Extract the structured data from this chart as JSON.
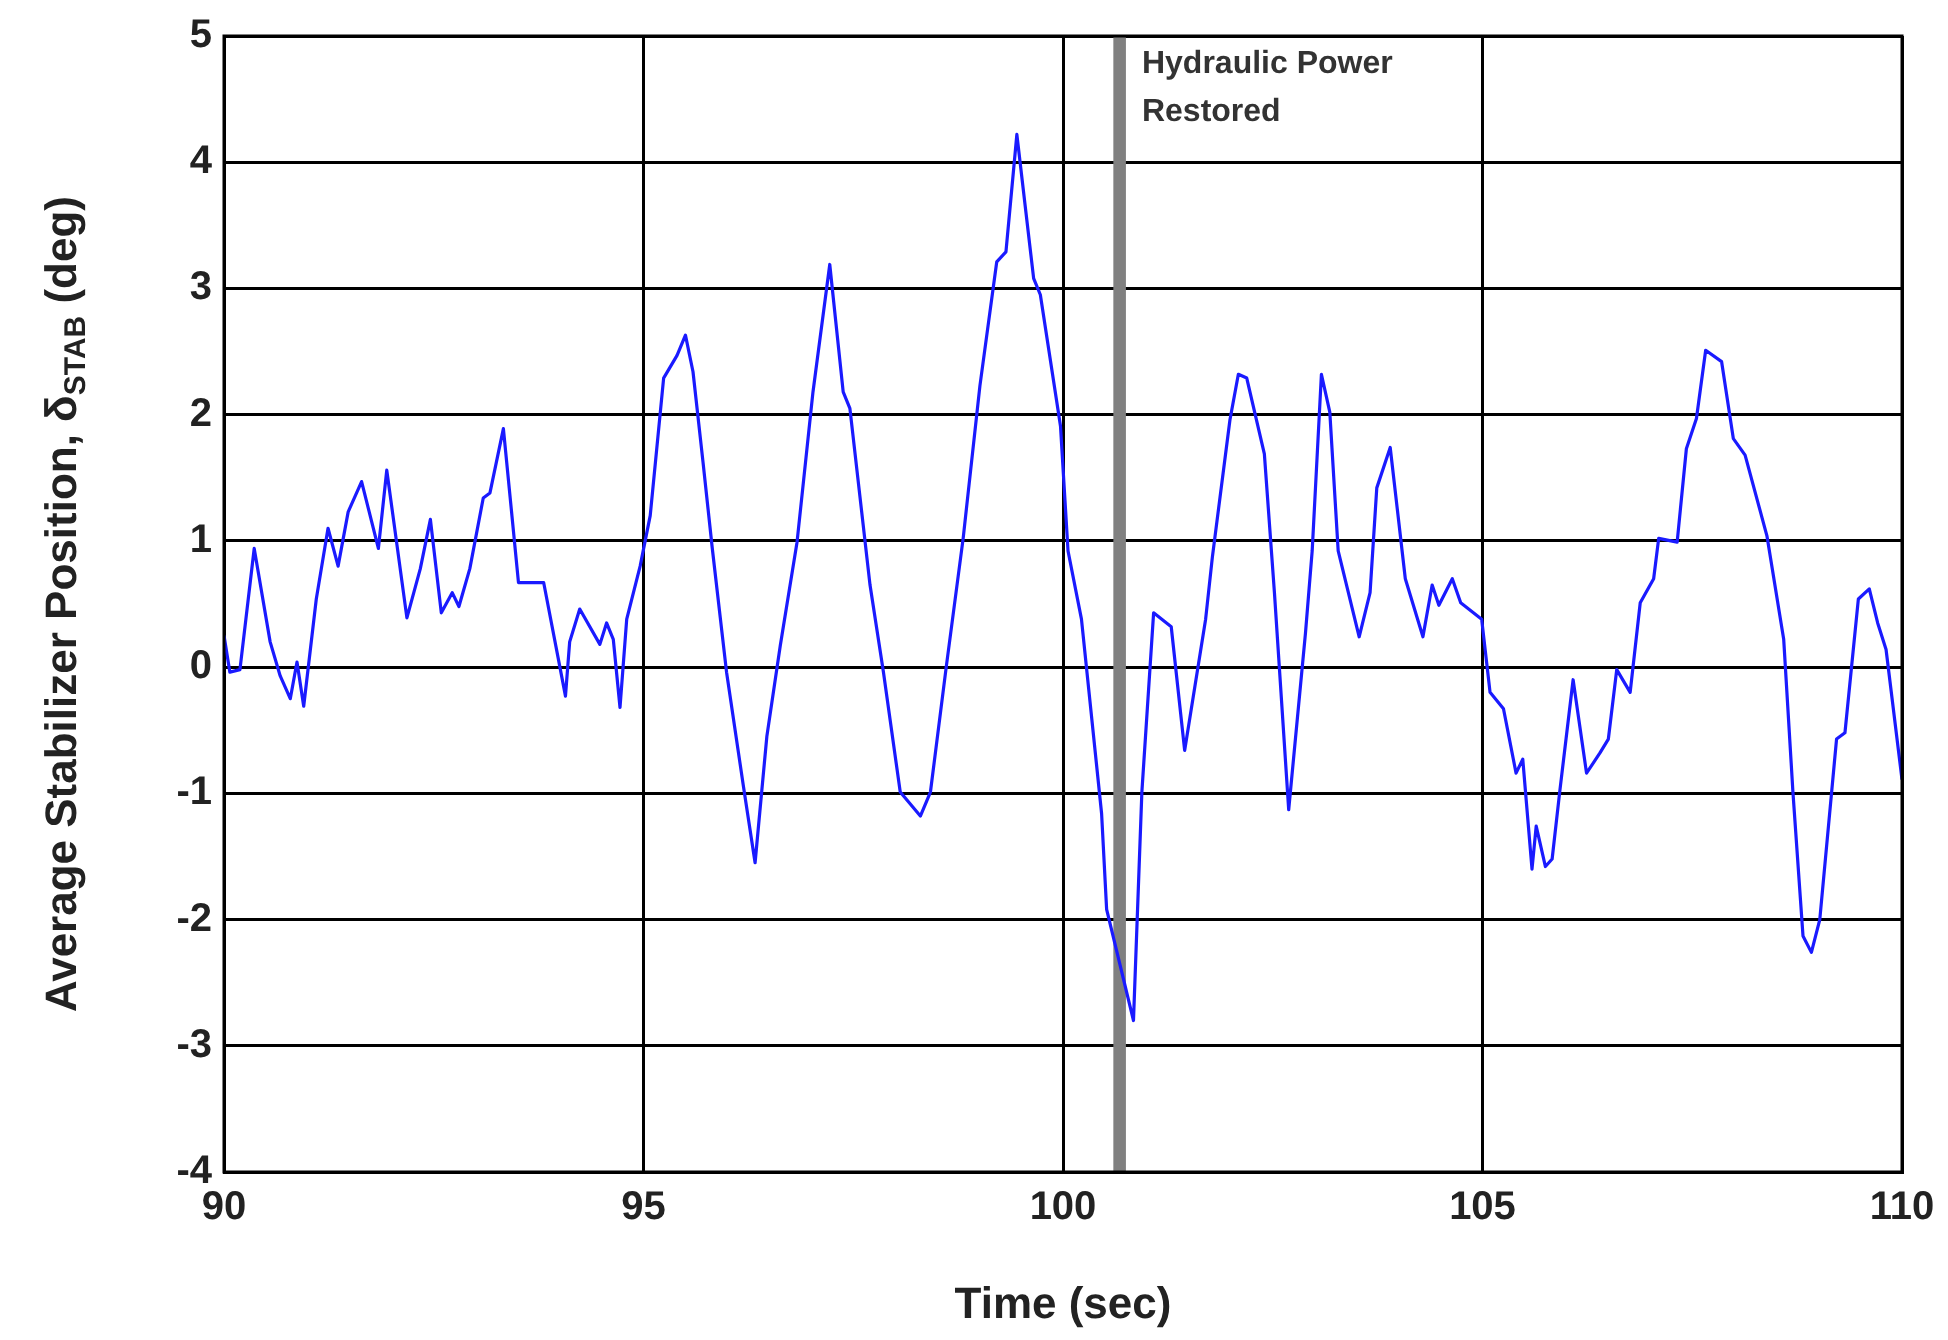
{
  "chart_data": {
    "type": "line",
    "xlabel": "Time (sec)",
    "ylabel": "Average Stabilizer Position, δ$_{STAB}$ (deg)",
    "xlim": [
      90,
      110
    ],
    "xticks": [
      90,
      95,
      100,
      105,
      110
    ],
    "ylim": [
      -4,
      5
    ],
    "yticks": [
      -4,
      -3,
      -2,
      -1,
      0,
      1,
      2,
      3,
      4,
      5
    ],
    "grid": true,
    "legend": false,
    "marker": "none",
    "line_style": "solid",
    "bands": [
      {
        "axis": "x",
        "from": 100.6,
        "to": 100.75,
        "label": "Hydraulic Power Restored",
        "color": "#808080"
      }
    ],
    "series": [
      {
        "color": "#1a1aff",
        "x": [
          90.0,
          90.07,
          90.19,
          90.36,
          90.55,
          90.67,
          90.79,
          90.87,
          90.95,
          91.1,
          91.24,
          91.36,
          91.48,
          91.64,
          91.84,
          91.94,
          92.18,
          92.34,
          92.46,
          92.59,
          92.72,
          92.8,
          92.93,
          93.09,
          93.17,
          93.33,
          93.51,
          93.81,
          94.07,
          94.12,
          94.24,
          94.48,
          94.56,
          94.64,
          94.72,
          94.8,
          94.96,
          95.08,
          95.24,
          95.4,
          95.5,
          95.59,
          95.71,
          95.82,
          95.99,
          96.19,
          96.33,
          96.47,
          96.63,
          96.83,
          97.02,
          97.22,
          97.38,
          97.46,
          97.7,
          97.86,
          98.06,
          98.3,
          98.42,
          98.61,
          98.81,
          99.01,
          99.21,
          99.32,
          99.45,
          99.65,
          99.73,
          99.97,
          100.06,
          100.22,
          100.46,
          100.52,
          100.84,
          100.94,
          101.08,
          101.29,
          101.45,
          101.7,
          101.78,
          101.99,
          102.09,
          102.19,
          102.4,
          102.52,
          102.69,
          102.89,
          102.97,
          103.08,
          103.18,
          103.28,
          103.53,
          103.66,
          103.74,
          103.9,
          104.08,
          104.29,
          104.4,
          104.48,
          104.64,
          104.74,
          104.99,
          105.09,
          105.25,
          105.4,
          105.48,
          105.59,
          105.64,
          105.75,
          105.83,
          105.92,
          106.08,
          106.24,
          106.4,
          106.5,
          106.6,
          106.76,
          106.88,
          107.04,
          107.1,
          107.32,
          107.43,
          107.55,
          107.66,
          107.85,
          107.99,
          108.13,
          108.39,
          108.59,
          108.7,
          108.82,
          108.92,
          109.02,
          109.22,
          109.32,
          109.48,
          109.61,
          109.71,
          109.81,
          110.0
        ],
        "values": [
          0.25,
          -0.04,
          -0.02,
          0.94,
          0.2,
          -0.07,
          -0.25,
          0.04,
          -0.31,
          0.54,
          1.1,
          0.8,
          1.23,
          1.47,
          0.94,
          1.56,
          0.39,
          0.78,
          1.17,
          0.43,
          0.59,
          0.48,
          0.78,
          1.34,
          1.38,
          1.89,
          0.67,
          0.67,
          -0.23,
          0.2,
          0.46,
          0.18,
          0.35,
          0.22,
          -0.32,
          0.38,
          0.8,
          1.2,
          2.29,
          2.47,
          2.63,
          2.34,
          1.62,
          0.94,
          -0.04,
          -0.94,
          -1.55,
          -0.55,
          0.17,
          0.99,
          2.18,
          3.19,
          2.18,
          2.05,
          0.65,
          -0.04,
          -0.99,
          -1.18,
          -0.99,
          0.01,
          1.02,
          2.23,
          3.21,
          3.29,
          4.22,
          3.08,
          2.95,
          1.91,
          0.92,
          0.38,
          -1.16,
          -1.92,
          -2.8,
          -0.99,
          0.43,
          0.32,
          -0.66,
          0.38,
          0.87,
          1.96,
          2.32,
          2.29,
          1.69,
          0.59,
          -1.13,
          0.27,
          0.92,
          2.32,
          2.02,
          0.92,
          0.24,
          0.59,
          1.42,
          1.74,
          0.7,
          0.24,
          0.65,
          0.49,
          0.7,
          0.51,
          0.38,
          -0.2,
          -0.33,
          -0.84,
          -0.73,
          -1.6,
          -1.26,
          -1.58,
          -1.52,
          -0.99,
          -0.1,
          -0.84,
          -0.68,
          -0.57,
          -0.02,
          -0.2,
          0.51,
          0.7,
          1.02,
          0.99,
          1.73,
          1.97,
          2.51,
          2.42,
          1.81,
          1.68,
          1.04,
          0.22,
          -0.99,
          -2.13,
          -2.26,
          -2.0,
          -0.57,
          -0.52,
          0.54,
          0.62,
          0.35,
          0.14,
          -0.89
        ]
      }
    ]
  }
}
